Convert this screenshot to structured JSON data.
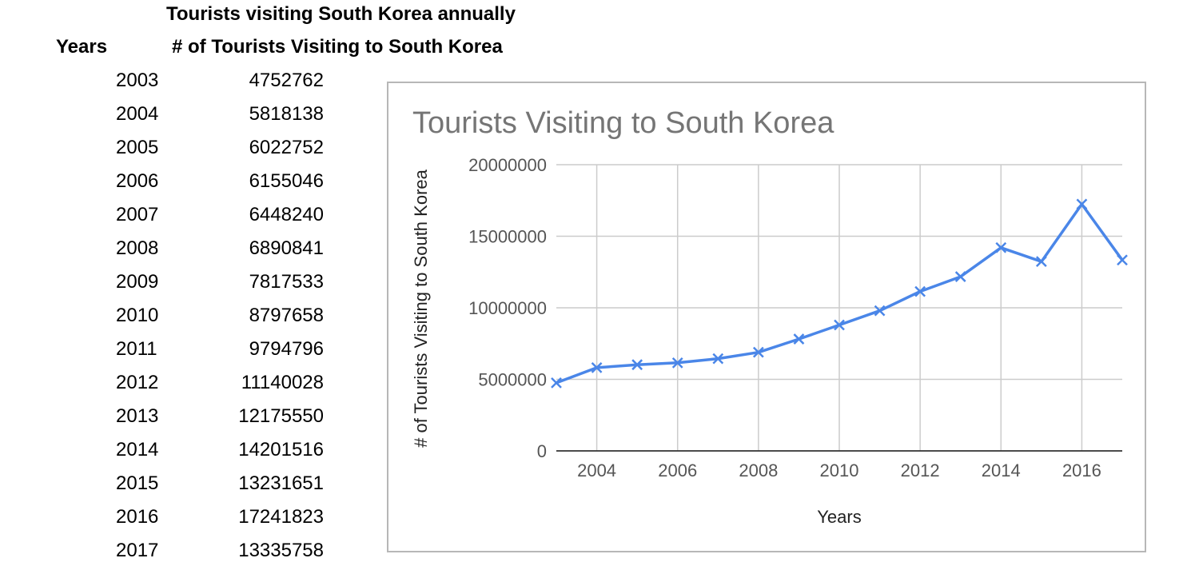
{
  "sheet": {
    "title": "Tourists visiting South Korea annually",
    "col_years": "Years",
    "col_count": "# of Tourists Visiting to South Korea",
    "rows": [
      {
        "year": "2003",
        "value": "4752762"
      },
      {
        "year": "2004",
        "value": "5818138"
      },
      {
        "year": "2005",
        "value": "6022752"
      },
      {
        "year": "2006",
        "value": "6155046"
      },
      {
        "year": "2007",
        "value": "6448240"
      },
      {
        "year": "2008",
        "value": "6890841"
      },
      {
        "year": "2009",
        "value": "7817533"
      },
      {
        "year": "2010",
        "value": "8797658"
      },
      {
        "year": "2011",
        "value": "9794796"
      },
      {
        "year": "2012",
        "value": "11140028"
      },
      {
        "year": "2013",
        "value": "12175550"
      },
      {
        "year": "2014",
        "value": "14201516"
      },
      {
        "year": "2015",
        "value": "13231651"
      },
      {
        "year": "2016",
        "value": "17241823"
      },
      {
        "year": "2017",
        "value": "13335758"
      }
    ]
  },
  "chart_data": {
    "type": "line",
    "title": "Tourists Visiting to South Korea",
    "xlabel": "Years",
    "ylabel": "# of Tourists Visiting to South Korea",
    "x": [
      2003,
      2004,
      2005,
      2006,
      2007,
      2008,
      2009,
      2010,
      2011,
      2012,
      2013,
      2014,
      2015,
      2016,
      2017
    ],
    "series": [
      {
        "values": [
          4752762,
          5818138,
          6022752,
          6155046,
          6448240,
          6890841,
          7817533,
          8797658,
          9794796,
          11140028,
          12175550,
          14201516,
          13231651,
          17241823,
          13335758
        ],
        "color": "#4a86e8",
        "marker": "x"
      }
    ],
    "xlim": [
      2003,
      2017
    ],
    "ylim": [
      0,
      20000000
    ],
    "xticks": [
      "2004",
      "2006",
      "2008",
      "2010",
      "2012",
      "2014",
      "2016"
    ],
    "yticks": [
      "0",
      "5000000",
      "10000000",
      "15000000",
      "20000000"
    ],
    "grid": true,
    "gridColor": "#cccccc",
    "legend": "none"
  }
}
